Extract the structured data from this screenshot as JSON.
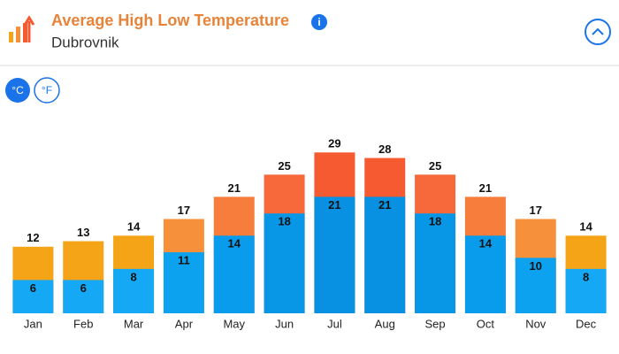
{
  "header": {
    "title": "Average High Low Temperature",
    "subtitle": "Dubrovnik",
    "info": "i"
  },
  "units": [
    "°C",
    "°F"
  ],
  "chart_data": {
    "type": "bar",
    "categories": [
      "Jan",
      "Feb",
      "Mar",
      "Apr",
      "May",
      "Jun",
      "Jul",
      "Aug",
      "Sep",
      "Oct",
      "Nov",
      "Dec"
    ],
    "series": [
      {
        "values": [
          12,
          13,
          14,
          17,
          21,
          25,
          29,
          28,
          25,
          21,
          17,
          14
        ],
        "colors": [
          "#f5a418",
          "#f5a418",
          "#f5a418",
          "#f7903a",
          "#f77d3c",
          "#f7683a",
          "#f55a30",
          "#f55a30",
          "#f7683a",
          "#f77d3c",
          "#f7903a",
          "#f5a418"
        ]
      },
      {
        "values": [
          6,
          6,
          8,
          11,
          14,
          18,
          21,
          21,
          18,
          14,
          10,
          8
        ],
        "colors": [
          "#14a8f5",
          "#14a8f5",
          "#14a8f5",
          "#0da2f0",
          "#0a9cec",
          "#0896e6",
          "#0891e2",
          "#0891e2",
          "#0896e6",
          "#0a9cec",
          "#0da2f0",
          "#14a8f5"
        ]
      }
    ],
    "ylim": [
      0,
      30
    ]
  }
}
